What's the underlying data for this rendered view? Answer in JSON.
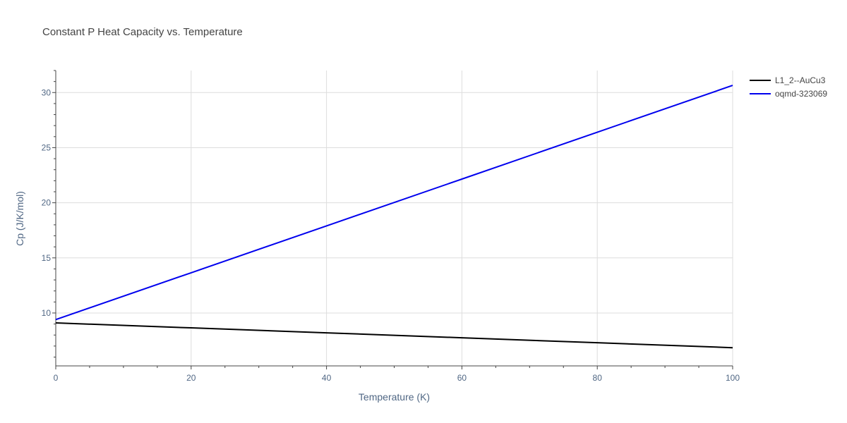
{
  "chart_data": {
    "type": "line",
    "title": "Constant P Heat Capacity vs. Temperature",
    "xlabel": "Temperature (K)",
    "ylabel": "Cp (J/K/mol)",
    "xlim": [
      0,
      100
    ],
    "ylim": [
      5.2,
      32
    ],
    "x_ticks": [
      0,
      20,
      40,
      60,
      80,
      100
    ],
    "y_ticks": [
      10,
      15,
      20,
      25,
      30
    ],
    "grid": true,
    "legend_position": "top-right",
    "series": [
      {
        "name": "L1_2--AuCu3",
        "color": "#000000",
        "x": [
          0,
          20,
          40,
          60,
          80,
          100
        ],
        "y": [
          9.1,
          8.65,
          8.2,
          7.75,
          7.3,
          6.85
        ]
      },
      {
        "name": "oqmd-323069",
        "color": "#0000ee",
        "x": [
          0,
          20,
          40,
          60,
          80,
          100
        ],
        "y": [
          9.4,
          13.65,
          17.9,
          22.15,
          26.4,
          30.65
        ]
      }
    ]
  }
}
